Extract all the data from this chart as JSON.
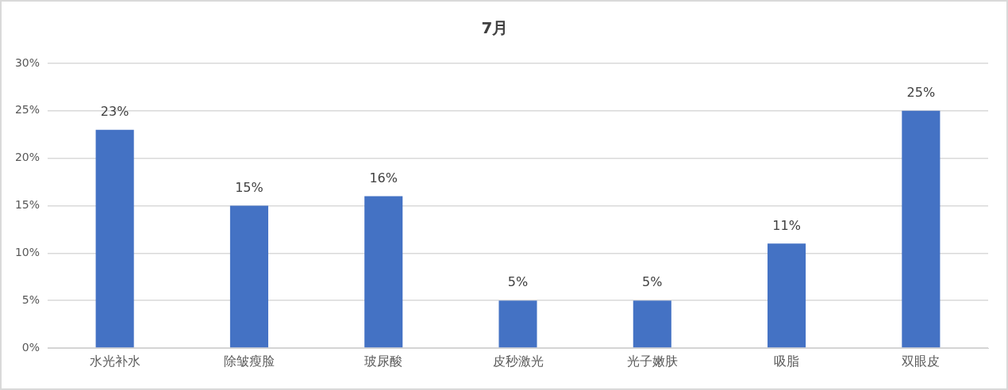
{
  "chart_data": {
    "type": "bar",
    "title": "7月",
    "categories": [
      "水光补水",
      "除皱瘦脸",
      "玻尿酸",
      "皮秒激光",
      "光子嫩肤",
      "吸脂",
      "双眼皮"
    ],
    "values": [
      23,
      15,
      16,
      5,
      5,
      11,
      25
    ],
    "value_labels": [
      "23%",
      "15%",
      "16%",
      "5%",
      "5%",
      "11%",
      "25%"
    ],
    "color": "#4472c4",
    "ylim": [
      0,
      30
    ],
    "yticks": [
      {
        "value": 0,
        "label": "0%"
      },
      {
        "value": 5,
        "label": "5%"
      },
      {
        "value": 10,
        "label": "10%"
      },
      {
        "value": 15,
        "label": "15%"
      },
      {
        "value": 20,
        "label": "20%"
      },
      {
        "value": 25,
        "label": "25%"
      },
      {
        "value": 30,
        "label": "30%"
      }
    ],
    "grid": "y"
  }
}
